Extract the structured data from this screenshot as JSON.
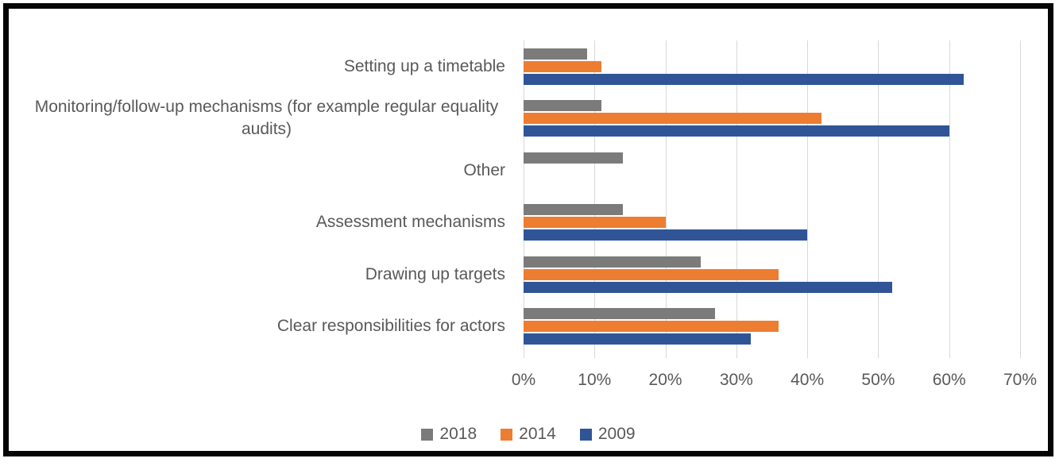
{
  "chart_data": {
    "type": "bar",
    "orientation": "horizontal",
    "title": "",
    "categories": [
      "Setting up a timetable",
      "Monitoring/follow-up mechanisms (for example regular equality audits)",
      "Other",
      "Assessment mechanisms",
      "Drawing up targets",
      "Clear responsibilities for actors"
    ],
    "series": [
      {
        "name": "2018",
        "color": "#7b7b7b",
        "values": [
          9,
          11,
          14,
          14,
          25,
          27
        ]
      },
      {
        "name": "2014",
        "color": "#ed7d31",
        "values": [
          11,
          42,
          0,
          20,
          36,
          36
        ]
      },
      {
        "name": "2009",
        "color": "#2f5597",
        "values": [
          62,
          60,
          0,
          40,
          52,
          32
        ]
      }
    ],
    "x_axis": {
      "min": 0,
      "max": 70,
      "unit": "%",
      "ticks": [
        "0%",
        "10%",
        "20%",
        "30%",
        "40%",
        "50%",
        "60%",
        "70%"
      ]
    },
    "grid": true,
    "legend_position": "bottom",
    "legend": [
      "2018",
      "2014",
      "2009"
    ]
  },
  "styles": {
    "text_color": "#595959",
    "grid_color": "#d9d9d9",
    "frame_border_color": "#050505",
    "background": "#ffffff"
  }
}
